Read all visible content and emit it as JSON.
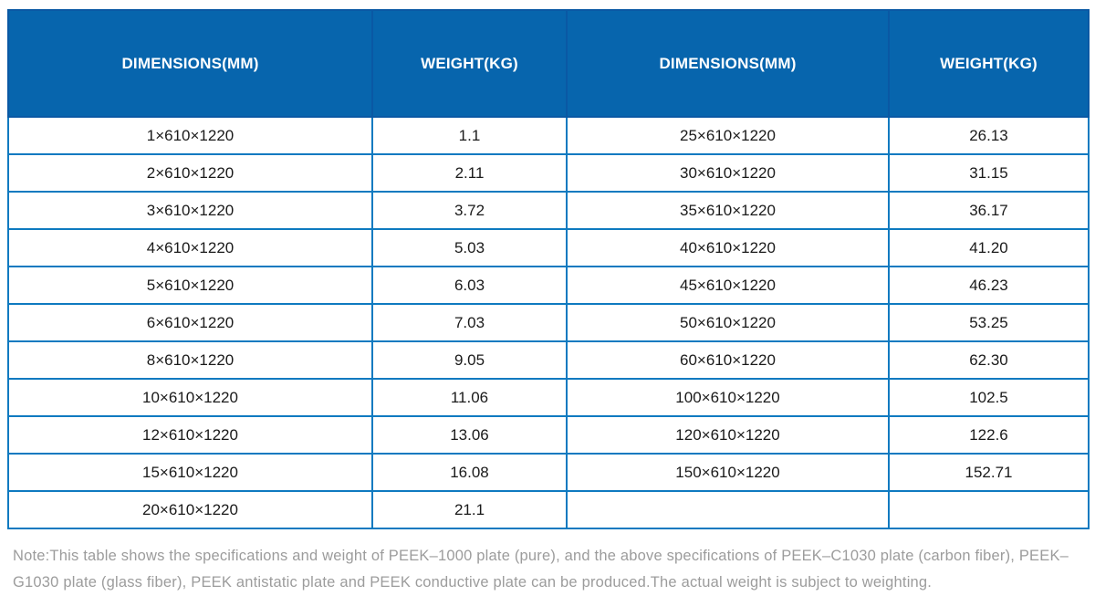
{
  "table": {
    "headers": [
      "DIMENSIONS(MM)",
      "WEIGHT(KG)",
      "DIMENSIONS(MM)",
      "WEIGHT(KG)"
    ],
    "rows": [
      [
        "1×610×1220",
        "1.1",
        "25×610×1220",
        "26.13"
      ],
      [
        "2×610×1220",
        "2.11",
        "30×610×1220",
        "31.15"
      ],
      [
        "3×610×1220",
        "3.72",
        "35×610×1220",
        "36.17"
      ],
      [
        "4×610×1220",
        "5.03",
        "40×610×1220",
        "41.20"
      ],
      [
        "5×610×1220",
        "6.03",
        "45×610×1220",
        "46.23"
      ],
      [
        "6×610×1220",
        "7.03",
        "50×610×1220",
        "53.25"
      ],
      [
        "8×610×1220",
        "9.05",
        "60×610×1220",
        "62.30"
      ],
      [
        "10×610×1220",
        "11.06",
        "100×610×1220",
        "102.5"
      ],
      [
        "12×610×1220",
        "13.06",
        "120×610×1220",
        "122.6"
      ],
      [
        "15×610×1220",
        "16.08",
        "150×610×1220",
        "152.71"
      ],
      [
        "20×610×1220",
        "21.1",
        "",
        ""
      ]
    ]
  },
  "note": "Note:This table shows the specifications and weight of PEEK–1000 plate (pure), and the above specifications of PEEK–C1030 plate (carbon fiber), PEEK–G1030 plate (glass fiber), PEEK antistatic plate and PEEK conductive plate can be produced.The actual weight is subject to weighting.",
  "colors": {
    "header_bg": "#0765ad",
    "header_divider": "#0a58a4",
    "grid": "#0e7ac0",
    "body_text": "#1a1a1a",
    "note_text": "#9c9c9c"
  }
}
